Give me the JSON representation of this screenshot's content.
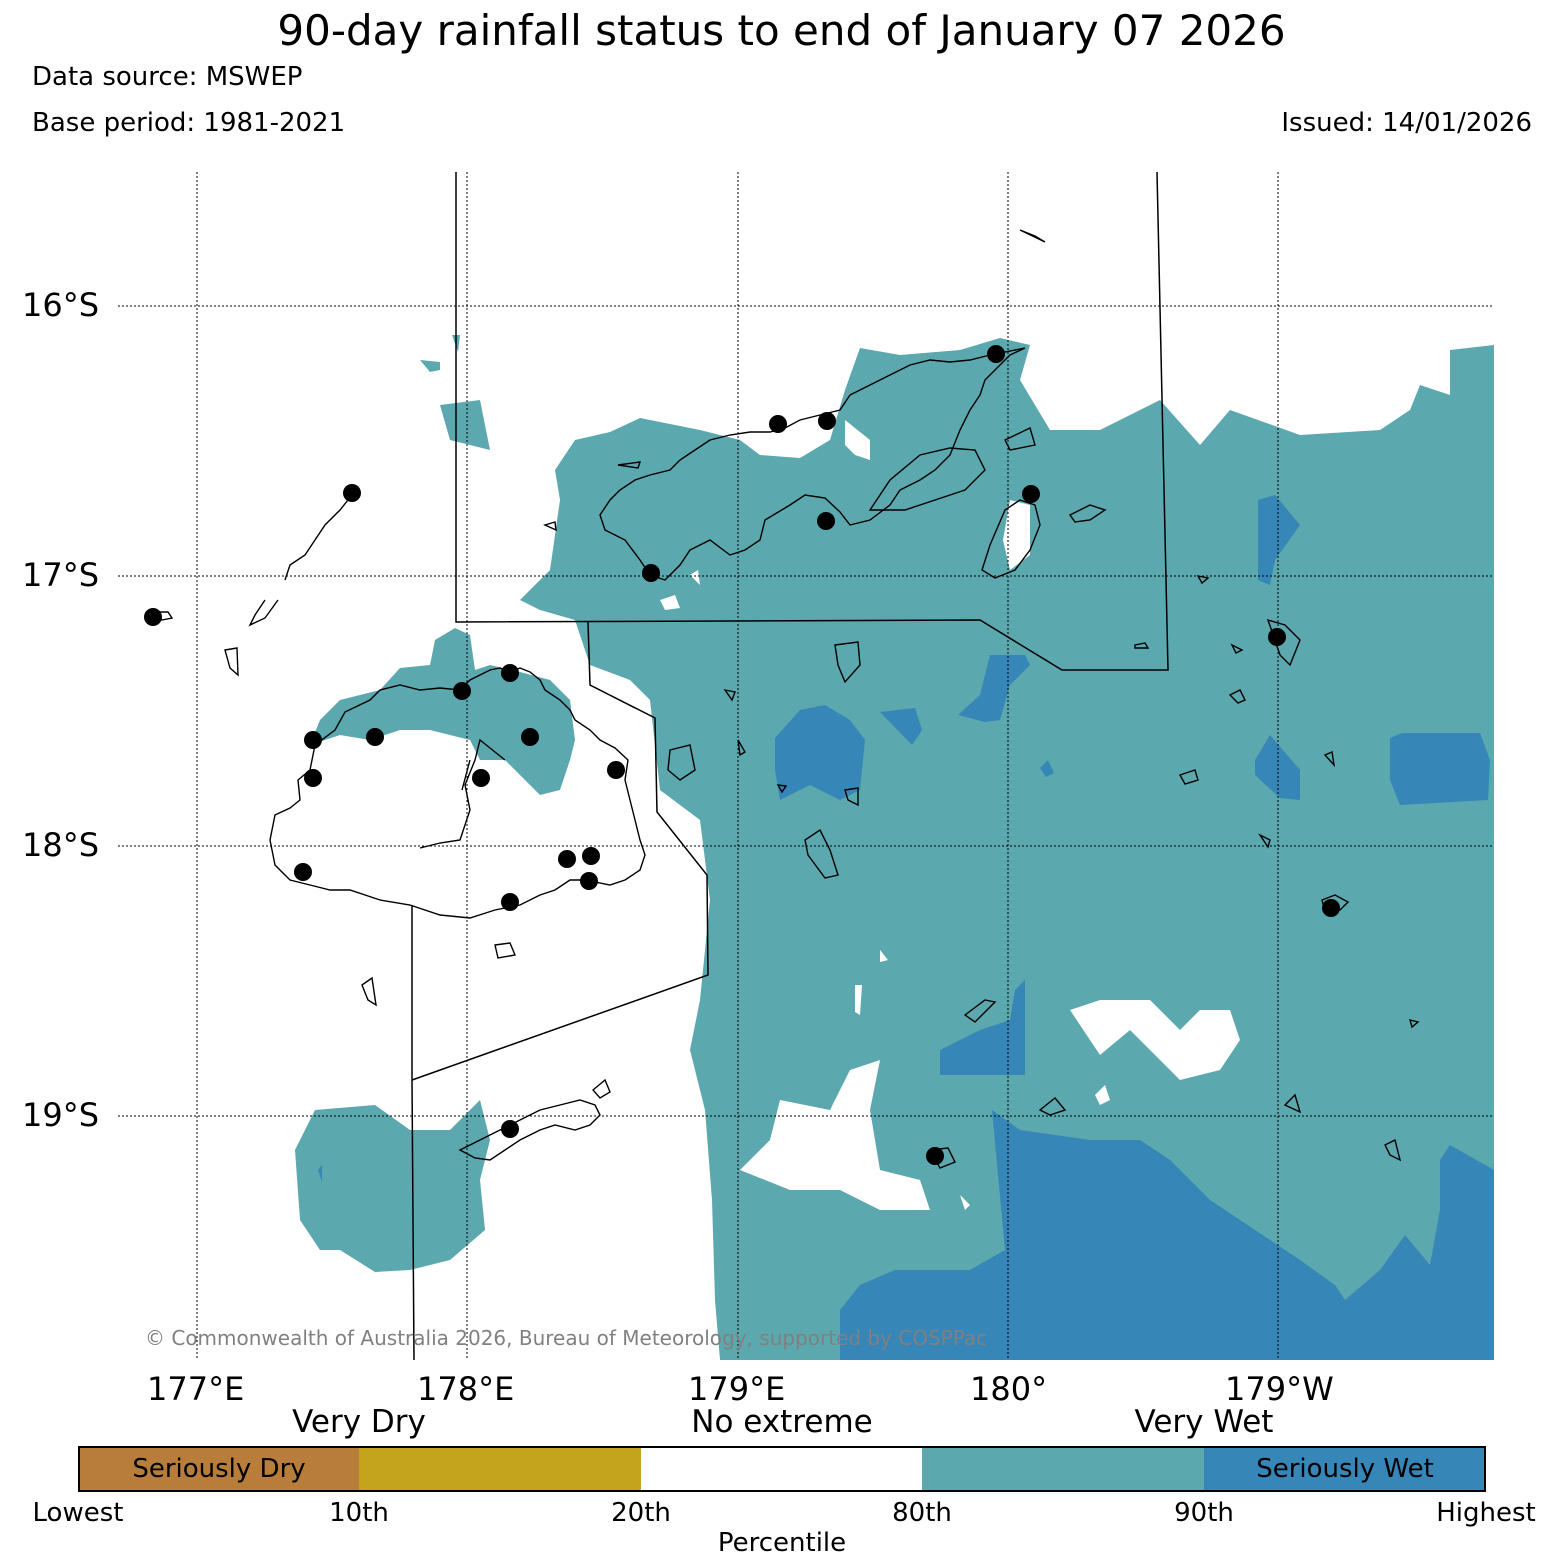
{
  "header": {
    "title": "90-day rainfall status to end of January 07 2026",
    "data_source": "Data source: MSWEP",
    "base_period": "Base period: 1981-2021",
    "issued": "Issued: 14/01/2026"
  },
  "map": {
    "lat_labels": [
      "16°S",
      "17°S",
      "18°S",
      "19°S"
    ],
    "lon_labels": [
      "177°E",
      "178°E",
      "179°E",
      "180°",
      "179°W"
    ],
    "copyright": "© Commonwealth of Australia 2026, Bureau of Meteorology, supported by COSPPac",
    "colors": {
      "very_wet": "#5ba8ae",
      "seriously_wet": "#3686b8",
      "land_outline": "#000000",
      "station": "#000000"
    }
  },
  "legend": {
    "categories_top": [
      "Very Dry",
      "No extreme",
      "Very Wet"
    ],
    "segments": [
      {
        "label": "Seriously Dry",
        "color": "#b87d3a"
      },
      {
        "label": "",
        "color": "#c4a41c"
      },
      {
        "label": "",
        "color": "#ffffff"
      },
      {
        "label": "",
        "color": "#5ba8ae"
      },
      {
        "label": "Seriously Wet",
        "color": "#3686b8"
      }
    ],
    "percentile_labels": [
      "Lowest",
      "10th",
      "20th",
      "80th",
      "90th",
      "Highest"
    ],
    "axis_label": "Percentile"
  }
}
